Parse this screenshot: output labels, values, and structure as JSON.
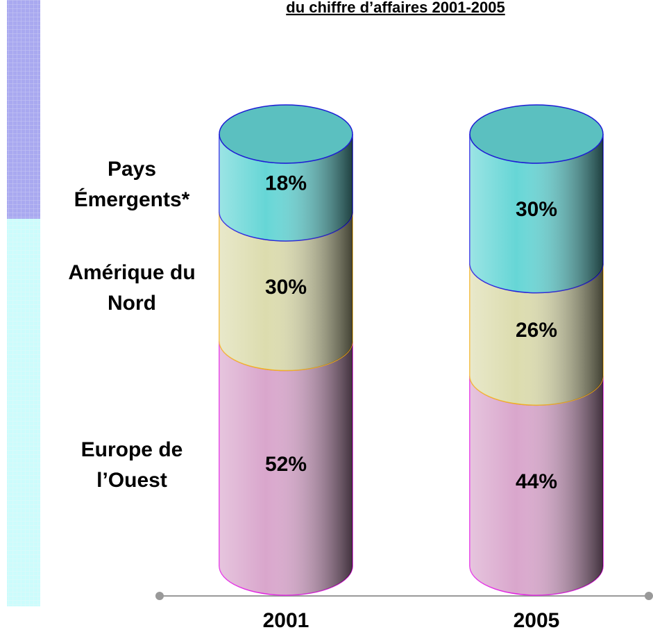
{
  "chart_data": {
    "type": "bar",
    "stacked": true,
    "title": "du chiffre d’affaires 2001-2005",
    "categories": [
      "2001",
      "2005"
    ],
    "series": [
      {
        "name": "Europe de l’Ouest",
        "color": "#d9a6cc",
        "values": [
          52,
          44
        ],
        "value_labels": [
          "52%",
          "44%"
        ]
      },
      {
        "name": "Amérique du Nord",
        "color": "#dcdcae",
        "values": [
          30,
          26
        ],
        "value_labels": [
          "30%",
          "26%"
        ]
      },
      {
        "name": "Pays Émergents*",
        "color": "#66d6d6",
        "values": [
          18,
          30
        ],
        "value_labels": [
          "18%",
          "30%"
        ]
      }
    ],
    "ylim": [
      0,
      100
    ]
  }
}
